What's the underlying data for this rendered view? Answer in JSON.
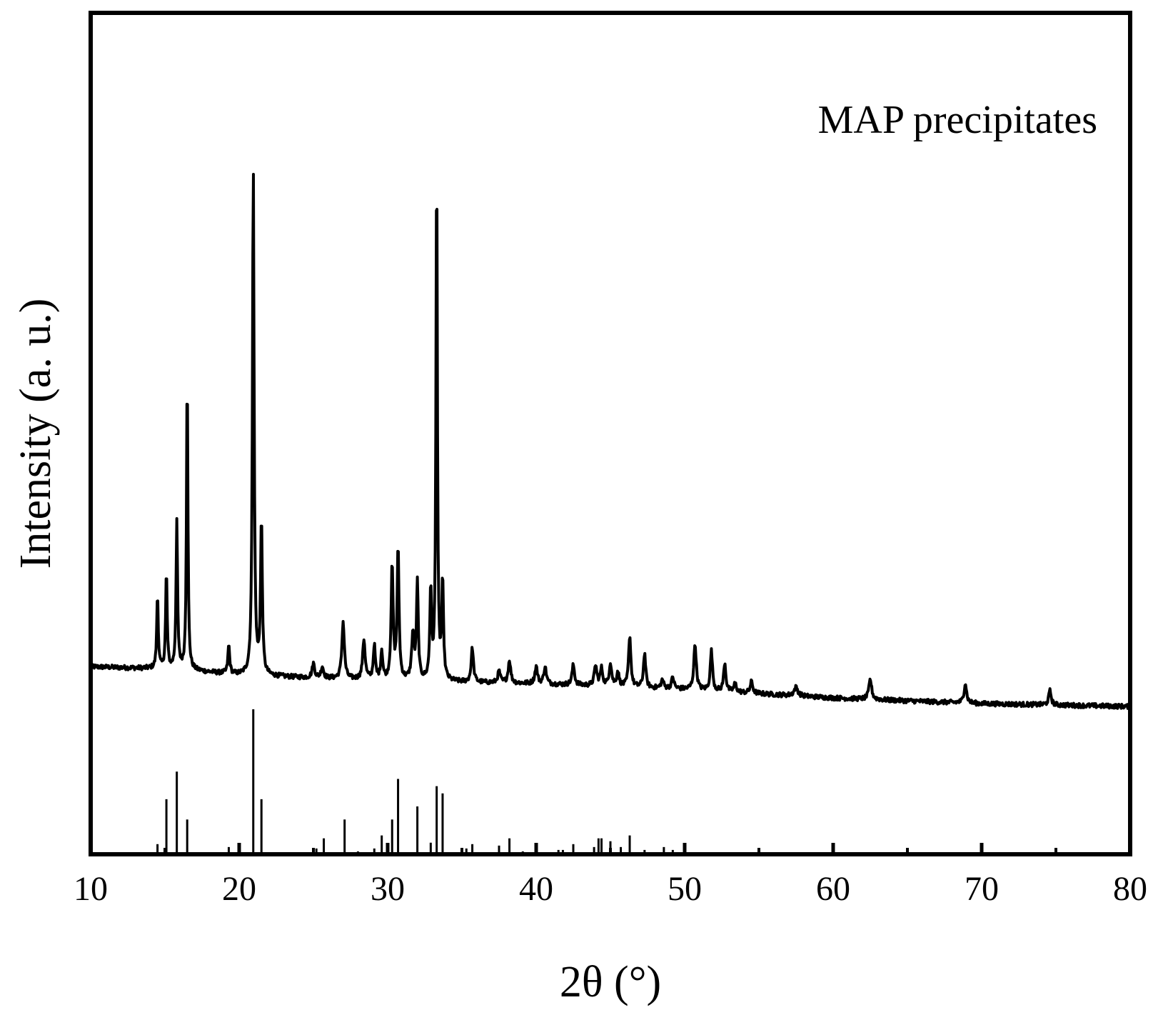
{
  "chart_data": {
    "type": "line",
    "title": "",
    "annotation": "MAP precipitates",
    "xlabel": "2θ (°)",
    "ylabel": "Intensity (a. u.)",
    "xlim": [
      10,
      80
    ],
    "ylim": [
      -0.3,
      1.18
    ],
    "xticks": [
      10,
      20,
      30,
      40,
      50,
      60,
      70,
      80
    ],
    "yticks_shown": false,
    "grid": false,
    "legend": "none",
    "colors": {
      "line": "#000000",
      "axes": "#000000",
      "background": "#ffffff"
    },
    "series": [
      {
        "kind": "line",
        "baseline": [
          [
            10,
            0.03
          ],
          [
            16,
            0.025
          ],
          [
            20,
            0.015
          ],
          [
            30,
            0.005
          ],
          [
            40,
            0.0
          ],
          [
            50,
            -0.01
          ],
          [
            60,
            -0.025
          ],
          [
            70,
            -0.035
          ],
          [
            80,
            -0.04
          ]
        ],
        "peaks": [
          [
            14.5,
            0.13,
            0.12
          ],
          [
            15.1,
            0.17,
            0.12
          ],
          [
            15.8,
            0.26,
            0.12
          ],
          [
            16.5,
            0.53,
            0.11
          ],
          [
            19.3,
            0.05,
            0.14
          ],
          [
            20.95,
            0.9,
            0.13
          ],
          [
            21.5,
            0.27,
            0.14
          ],
          [
            25.0,
            0.025,
            0.2
          ],
          [
            25.6,
            0.02,
            0.2
          ],
          [
            27.0,
            0.1,
            0.2
          ],
          [
            28.4,
            0.07,
            0.2
          ],
          [
            29.1,
            0.06,
            0.16
          ],
          [
            29.6,
            0.05,
            0.16
          ],
          [
            30.3,
            0.2,
            0.16
          ],
          [
            30.7,
            0.23,
            0.15
          ],
          [
            31.7,
            0.08,
            0.2
          ],
          [
            32.0,
            0.17,
            0.14
          ],
          [
            32.9,
            0.16,
            0.14
          ],
          [
            33.3,
            0.93,
            0.11
          ],
          [
            33.7,
            0.17,
            0.14
          ],
          [
            35.7,
            0.06,
            0.18
          ],
          [
            37.5,
            0.02,
            0.2
          ],
          [
            38.2,
            0.04,
            0.2
          ],
          [
            40.0,
            0.03,
            0.2
          ],
          [
            40.6,
            0.03,
            0.2
          ],
          [
            42.5,
            0.035,
            0.2
          ],
          [
            44.0,
            0.035,
            0.2
          ],
          [
            44.4,
            0.03,
            0.2
          ],
          [
            45.0,
            0.04,
            0.2
          ],
          [
            45.5,
            0.025,
            0.2
          ],
          [
            46.3,
            0.09,
            0.18
          ],
          [
            47.3,
            0.06,
            0.18
          ],
          [
            48.5,
            0.015,
            0.2
          ],
          [
            49.2,
            0.02,
            0.2
          ],
          [
            50.7,
            0.08,
            0.2
          ],
          [
            51.8,
            0.07,
            0.18
          ],
          [
            52.7,
            0.05,
            0.18
          ],
          [
            53.4,
            0.015,
            0.2
          ],
          [
            54.5,
            0.02,
            0.2
          ],
          [
            57.5,
            0.015,
            0.3
          ],
          [
            62.5,
            0.035,
            0.22
          ],
          [
            68.9,
            0.035,
            0.2
          ],
          [
            74.6,
            0.025,
            0.2
          ]
        ]
      },
      {
        "kind": "reference-sticks",
        "x": [
          14.5,
          15.1,
          15.8,
          16.5,
          19.3,
          20.95,
          21.5,
          25.2,
          25.7,
          27.1,
          28.0,
          29.1,
          29.6,
          30.3,
          30.7,
          32.0,
          32.9,
          33.3,
          33.7,
          35.3,
          35.7,
          37.5,
          38.2,
          39.1,
          40.0,
          41.5,
          41.8,
          42.5,
          43.9,
          44.2,
          44.4,
          45.0,
          45.7,
          46.3,
          47.3,
          48.6,
          49.2
        ],
        "y": [
          0.07,
          0.38,
          0.57,
          0.24,
          0.05,
          1.0,
          0.38,
          0.04,
          0.11,
          0.24,
          0.02,
          0.04,
          0.13,
          0.24,
          0.52,
          0.33,
          0.08,
          0.47,
          0.42,
          0.04,
          0.07,
          0.06,
          0.11,
          0.02,
          0.03,
          0.03,
          0.03,
          0.07,
          0.05,
          0.11,
          0.11,
          0.09,
          0.05,
          0.13,
          0.03,
          0.05,
          0.03
        ]
      }
    ]
  }
}
